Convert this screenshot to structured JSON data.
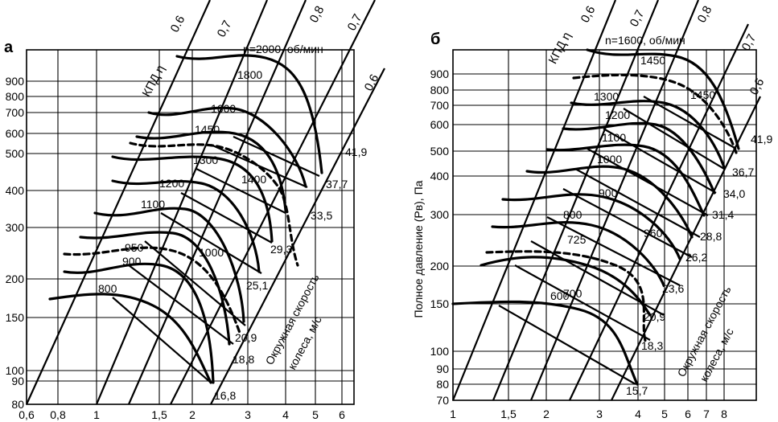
{
  "chart_data": [
    {
      "type": "line",
      "panel_label": "а",
      "ylabel": "",
      "yticks": [
        "80",
        "90",
        "100",
        "150",
        "200",
        "300",
        "400",
        "500",
        "600",
        "700",
        "800",
        "900"
      ],
      "xticks": [
        "0,6",
        "0,8",
        "1",
        "1,5",
        "2",
        "3",
        "4",
        "5",
        "6"
      ],
      "annotation": "n=2000, об/мин",
      "efficiency_title": "КПД η",
      "efficiency_labels": [
        "0.6",
        "0,7",
        "0,8",
        "0,7",
        "0,6"
      ],
      "axis_title": "Окружная скорость колеса, м/с",
      "speed_labels": [
        "41,9",
        "37,7",
        "33,5",
        "29,3",
        "25,1",
        "20,9",
        "18,8",
        "16,8"
      ],
      "series": [
        {
          "name": "1800"
        },
        {
          "name": "1600"
        },
        {
          "name": "1450"
        },
        {
          "name": "1300"
        },
        {
          "name": "1400"
        },
        {
          "name": "1200"
        },
        {
          "name": "1100"
        },
        {
          "name": "1000"
        },
        {
          "name": "950"
        },
        {
          "name": "900"
        },
        {
          "name": "800"
        }
      ]
    },
    {
      "type": "line",
      "panel_label": "б",
      "ylabel": "Полное давление (Pв), Па",
      "yticks": [
        "70",
        "80",
        "90",
        "100",
        "150",
        "200",
        "300",
        "400",
        "500",
        "600",
        "700",
        "800",
        "900"
      ],
      "xticks": [
        "1",
        "1,5",
        "2",
        "3",
        "4",
        "5",
        "6",
        "7",
        "8"
      ],
      "annotation": "n=1600, об/мин",
      "efficiency_title": "КПД η",
      "efficiency_labels": [
        "0,6",
        "0,7",
        "0,8",
        "0,7",
        "0,6"
      ],
      "axis_title": "Окружная скорость колеса, м/с",
      "speed_labels": [
        "41,9",
        "36,7",
        "34,0",
        "31,4",
        "28,8",
        "26,2",
        "23,6",
        "20,9",
        "18,3",
        "15,7"
      ],
      "series": [
        {
          "name": "1450"
        },
        {
          "name": "1450"
        },
        {
          "name": "1300"
        },
        {
          "name": "1200"
        },
        {
          "name": "1100"
        },
        {
          "name": "1000"
        },
        {
          "name": "900"
        },
        {
          "name": "800"
        },
        {
          "name": "960"
        },
        {
          "name": "725"
        },
        {
          "name": "700"
        },
        {
          "name": "600"
        }
      ]
    }
  ]
}
